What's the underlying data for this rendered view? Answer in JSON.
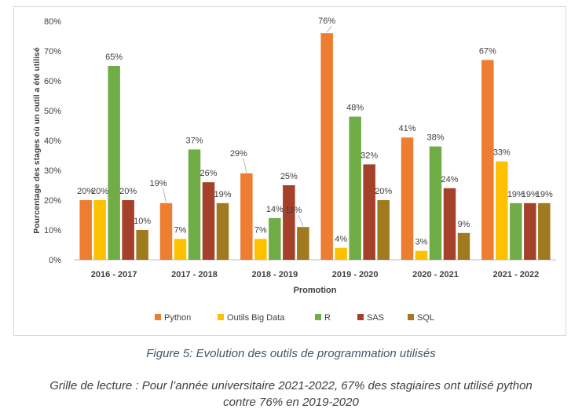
{
  "chart_data": {
    "type": "bar",
    "categories": [
      "2016 - 2017",
      "2017 - 2018",
      "2018 - 2019",
      "2019 - 2020",
      "2020 - 2021",
      "2021 - 2022"
    ],
    "series": [
      {
        "name": "Python",
        "color": "#ED7D31",
        "values": [
          20,
          19,
          29,
          76,
          41,
          67
        ]
      },
      {
        "name": "Outils Big Data",
        "color": "#FFC000",
        "values": [
          20,
          7,
          7,
          4,
          3,
          33
        ]
      },
      {
        "name": "R",
        "color": "#70AD47",
        "values": [
          65,
          37,
          14,
          48,
          38,
          19
        ]
      },
      {
        "name": "SAS",
        "color": "#A5402A",
        "values": [
          20,
          26,
          25,
          32,
          24,
          19
        ]
      },
      {
        "name": "SQL",
        "color": "#A07A1E",
        "values": [
          10,
          19,
          11,
          20,
          9,
          19
        ]
      }
    ],
    "ylabel": "Pourcentage des stages où un outil a été utilisé",
    "xlabel": "Promotion",
    "ylim": [
      0,
      80
    ],
    "yticks": [
      0,
      10,
      20,
      30,
      40,
      50,
      60,
      70,
      80
    ],
    "value_suffix": "%",
    "grid": false,
    "legend_position": "bottom"
  },
  "caption": {
    "figure": "Figure 5: Evolution des outils de programmation utilisés",
    "reading_line1": "Grille de lecture : Pour l’année universitaire 2021-2022, 67% des stagiaires ont utilisé python",
    "reading_line2": "contre 76% en 2019-2020"
  }
}
